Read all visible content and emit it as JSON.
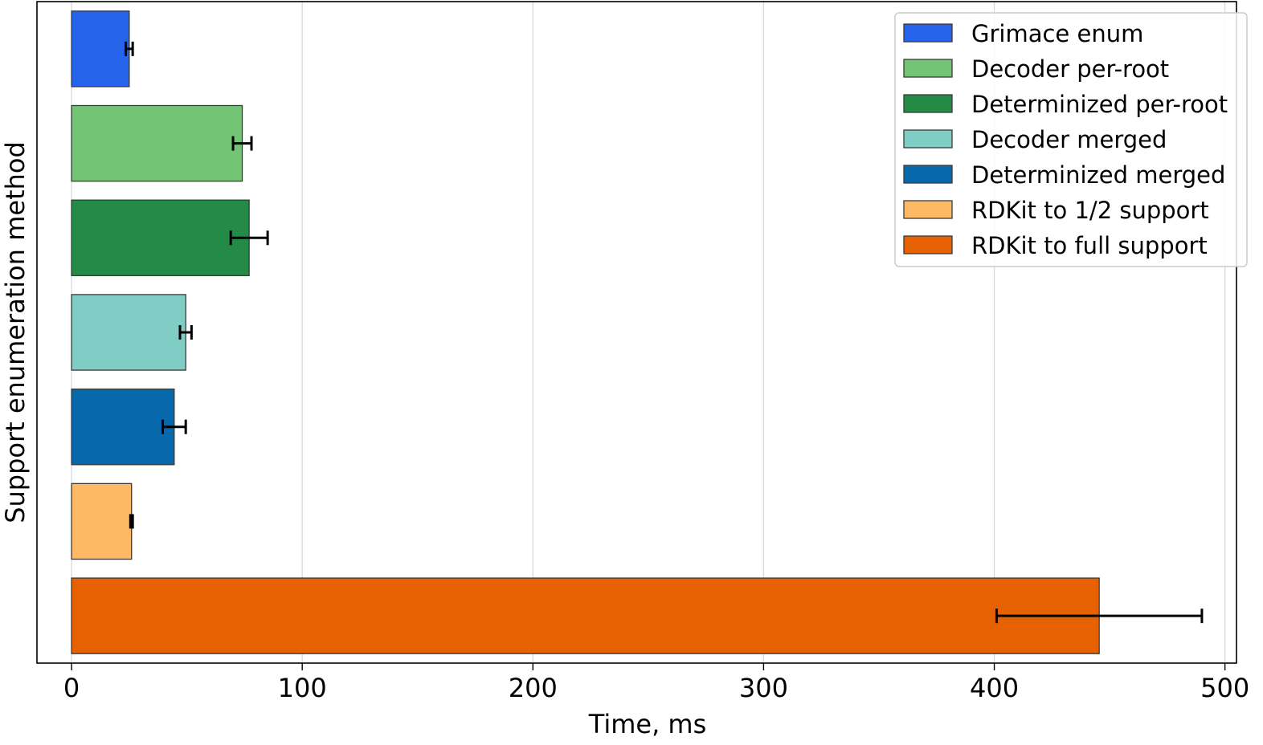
{
  "chart_data": {
    "type": "bar",
    "orientation": "horizontal",
    "xlabel": "Time, ms",
    "ylabel": "Support enumeration method",
    "xlim": [
      -15,
      505
    ],
    "xticks": [
      0,
      100,
      200,
      300,
      400,
      500
    ],
    "grid": "vertical",
    "legend_position": "top-right",
    "series": [
      {
        "name": "Grimace enum",
        "value": 25,
        "error": 1.5,
        "color": "#2563eb"
      },
      {
        "name": "Decoder per-root",
        "value": 74,
        "error": 4,
        "color": "#74c476"
      },
      {
        "name": "Determinized per-root",
        "value": 77,
        "error": 8,
        "color": "#238b45"
      },
      {
        "name": "Decoder merged",
        "value": 49.5,
        "error": 2.5,
        "color": "#7fcdc4"
      },
      {
        "name": "Determinized merged",
        "value": 44.5,
        "error": 5,
        "color": "#0868ac"
      },
      {
        "name": "RDKit to 1/2 support",
        "value": 26,
        "error": 0.5,
        "color": "#fdb966"
      },
      {
        "name": "RDKit to full support",
        "value": 445.5,
        "error": 44.5,
        "color": "#e66101"
      }
    ]
  }
}
